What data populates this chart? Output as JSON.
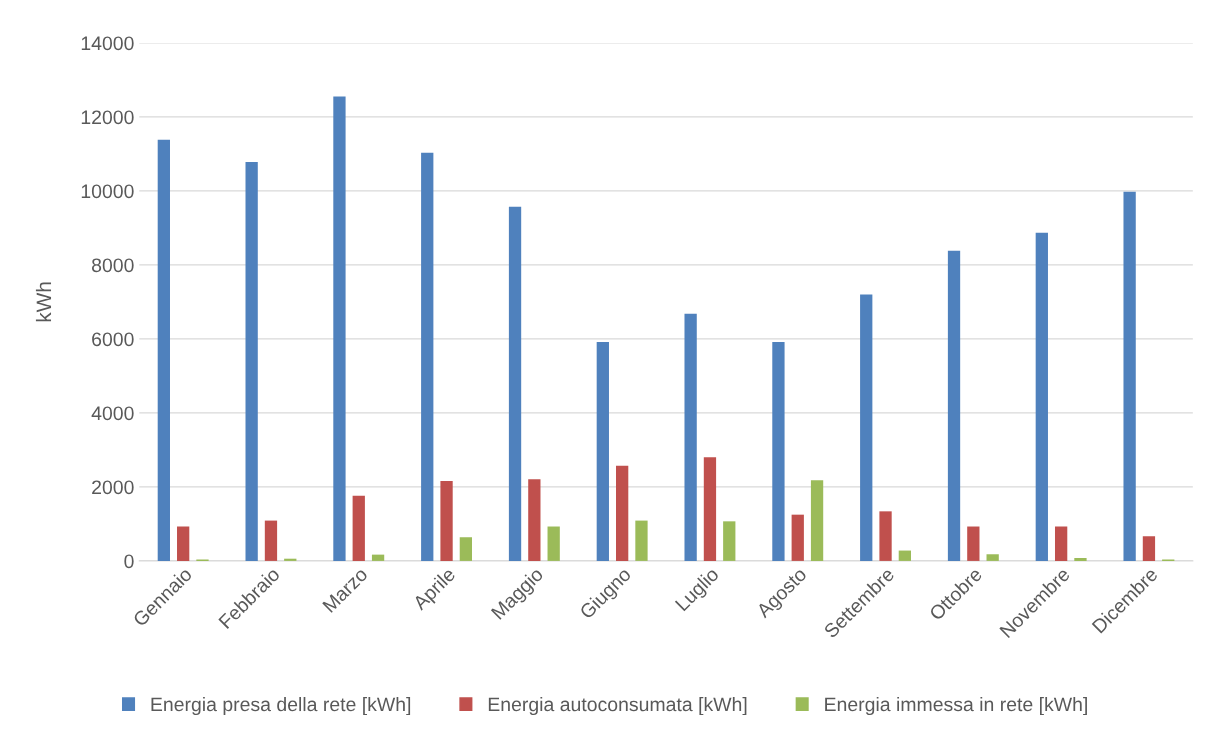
{
  "chart_data": {
    "type": "bar",
    "ylabel": "kWh",
    "categories": [
      "Gennaio",
      "Febbraio",
      "Marzo",
      "Aprile",
      "Maggio",
      "Giugno",
      "Luglio",
      "Agosto",
      "Settembre",
      "Ottobre",
      "Novembre",
      "Dicembre"
    ],
    "series": [
      {
        "name": "Energia presa della rete [kWh]",
        "color": "#4f81bd",
        "values": [
          11380,
          10780,
          12550,
          11030,
          9570,
          5920,
          6680,
          5920,
          7200,
          8380,
          8870,
          9980
        ]
      },
      {
        "name": "Energia autoconsumata [kWh]",
        "color": "#c0504d",
        "values": [
          930,
          1090,
          1760,
          2160,
          2210,
          2570,
          2800,
          1250,
          1340,
          930,
          930,
          670
        ]
      },
      {
        "name": "Energia immessa in rete [kWh]",
        "color": "#9bbb59",
        "values": [
          40,
          60,
          170,
          640,
          930,
          1090,
          1070,
          2180,
          280,
          180,
          80,
          40
        ]
      }
    ],
    "ylim": [
      0,
      14000
    ],
    "yticks": [
      0,
      2000,
      4000,
      6000,
      8000,
      10000,
      12000,
      14000
    ],
    "grid": "y",
    "legend": "bottom"
  }
}
